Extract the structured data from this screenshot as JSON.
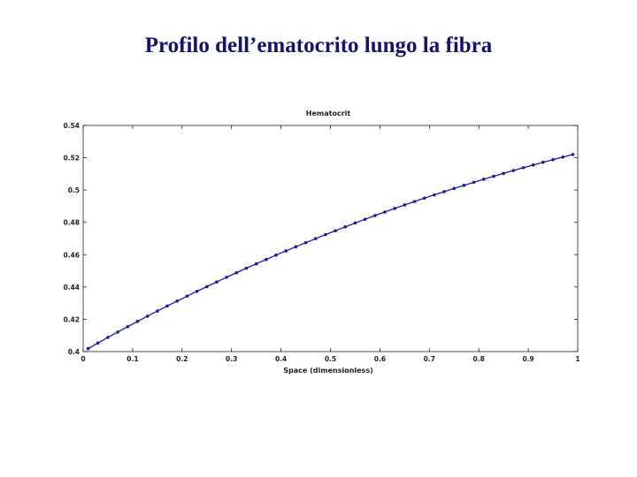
{
  "slide": {
    "title": "Profilo dell’ematocrito lungo la fibra"
  },
  "chart_data": {
    "type": "line",
    "title": "Hematocrit",
    "xlabel": "Space (dimensionless)",
    "ylabel": "",
    "xlim": [
      0,
      1
    ],
    "ylim": [
      0.4,
      0.54
    ],
    "grid": false,
    "x_ticks": [
      0,
      0.1,
      0.2,
      0.3,
      0.4,
      0.5,
      0.6,
      0.7,
      0.8,
      0.9,
      1
    ],
    "x_tick_labels": [
      "0",
      "0.1",
      "0.2",
      "0.3",
      "0.4",
      "0.5",
      "0.6",
      "0.7",
      "0.8",
      "0.9",
      "1"
    ],
    "y_ticks": [
      0.4,
      0.42,
      0.44,
      0.46,
      0.48,
      0.5,
      0.52,
      0.54
    ],
    "y_tick_labels": [
      "0.4",
      "0.42",
      "0.44",
      "0.46",
      "0.48",
      "0.5",
      "0.52",
      "0.54"
    ],
    "series_color": "#1a1aa0",
    "marker": "dot",
    "series": [
      {
        "x": [
          0.01,
          0.03,
          0.05,
          0.07,
          0.09,
          0.11,
          0.13,
          0.15,
          0.17,
          0.19,
          0.21,
          0.23,
          0.25,
          0.27,
          0.29,
          0.31,
          0.33,
          0.35,
          0.37,
          0.39,
          0.41,
          0.43,
          0.45,
          0.47,
          0.49,
          0.51,
          0.53,
          0.55,
          0.57,
          0.59,
          0.61,
          0.63,
          0.65,
          0.67,
          0.69,
          0.71,
          0.73,
          0.75,
          0.77,
          0.79,
          0.81,
          0.83,
          0.85,
          0.87,
          0.89,
          0.91,
          0.93,
          0.95,
          0.97,
          0.99
        ],
        "y": [
          0.4018,
          0.4053,
          0.4088,
          0.4121,
          0.4154,
          0.4187,
          0.4219,
          0.4251,
          0.4282,
          0.4313,
          0.4343,
          0.4373,
          0.4402,
          0.4431,
          0.446,
          0.4488,
          0.4516,
          0.4543,
          0.457,
          0.4597,
          0.4623,
          0.4649,
          0.4674,
          0.4699,
          0.4724,
          0.4748,
          0.4772,
          0.4796,
          0.4819,
          0.4842,
          0.4864,
          0.4886,
          0.4908,
          0.4929,
          0.495,
          0.497,
          0.499,
          0.501,
          0.5029,
          0.5048,
          0.5067,
          0.5085,
          0.5103,
          0.5121,
          0.5138,
          0.5155,
          0.5172,
          0.5188,
          0.5204,
          0.522
        ]
      }
    ]
  }
}
